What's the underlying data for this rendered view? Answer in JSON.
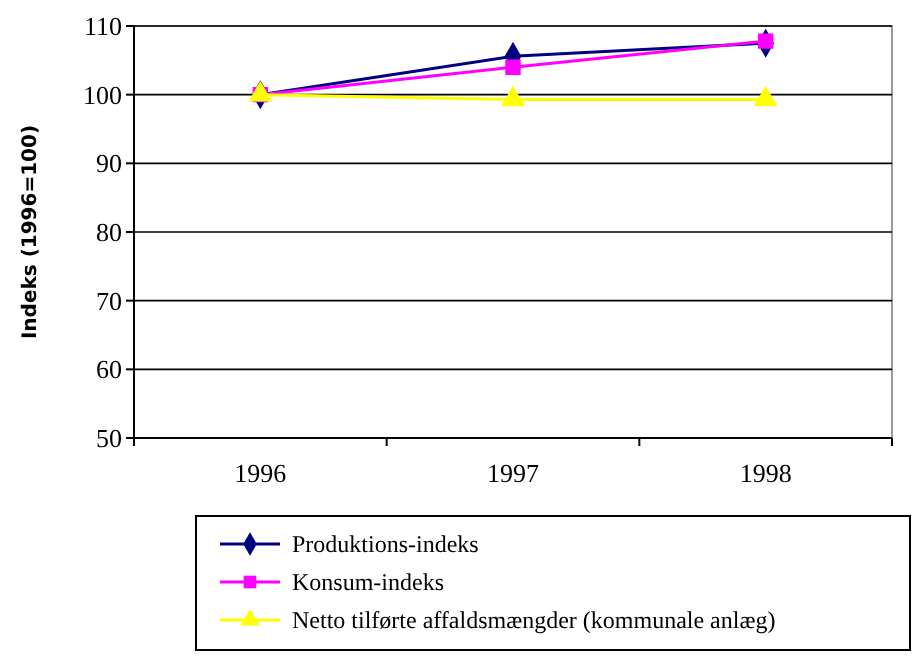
{
  "chart_data": {
    "type": "line",
    "ylabel": "Indeks (1996=100)",
    "categories": [
      "1996",
      "1997",
      "1998"
    ],
    "ylim": [
      50,
      110
    ],
    "yticks": [
      50,
      60,
      70,
      80,
      90,
      100,
      110
    ],
    "grid": "y",
    "legend": "bottom",
    "line_style": "solid",
    "series": [
      {
        "name": "Produktions-indeks",
        "color": "#000080",
        "marker": "diamond",
        "values": [
          100,
          105.6,
          107.5
        ]
      },
      {
        "name": "Konsum-indeks",
        "color": "#ff00ff",
        "marker": "square",
        "values": [
          100,
          104,
          107.8
        ]
      },
      {
        "name": "Netto tilførte affaldsmængder (kommunale anlæg)",
        "color": "#ffff00",
        "marker": "triangle",
        "values": [
          100,
          99.3,
          99.3
        ]
      }
    ]
  }
}
